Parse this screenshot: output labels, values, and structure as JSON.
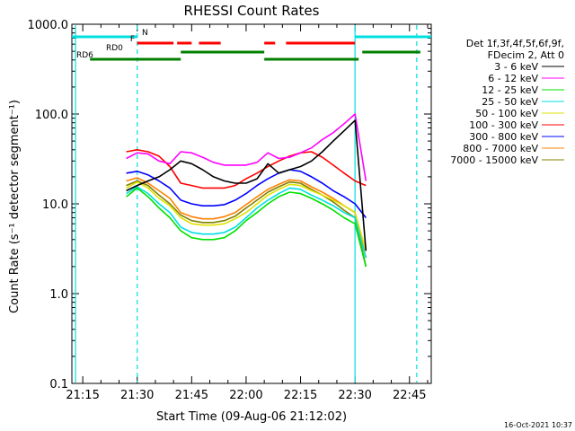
{
  "chart_data": {
    "type": "line",
    "title": "RHESSI Count Rates",
    "xlabel": "Start Time (09-Aug-06 21:12:02)",
    "ylabel": "Count Rate (s⁻¹ detector segment⁻¹)",
    "y_scale": "log",
    "ylim": [
      0.1,
      1000
    ],
    "y_ticks": [
      0.1,
      1.0,
      10.0,
      100.0,
      1000.0
    ],
    "y_tick_labels": [
      "0.1",
      "1.0",
      "10.0",
      "100.0",
      "1000.0"
    ],
    "xlim": [
      "21:12",
      "22:51"
    ],
    "x_ticks": [
      "21:15",
      "21:30",
      "21:45",
      "22:00",
      "22:15",
      "22:30",
      "22:45"
    ],
    "legend_position": "right",
    "legend_header": [
      "Det 1f,3f,4f,5f,6f,9f,",
      "FDecim 2, Att 0"
    ],
    "timestamp": "16-Oct-2021 10:37",
    "time_points": [
      "21:27",
      "21:30",
      "21:33",
      "21:36",
      "21:39",
      "21:42",
      "21:45",
      "21:48",
      "21:51",
      "21:54",
      "21:57",
      "22:00",
      "22:03",
      "22:06",
      "22:09",
      "22:12",
      "22:15",
      "22:18",
      "22:21",
      "22:24",
      "22:27",
      "22:30",
      "22:33"
    ],
    "series": [
      {
        "name": "3 - 6 keV",
        "color": "#000000",
        "values": [
          14,
          16,
          18,
          20,
          24,
          30,
          28,
          24,
          20,
          18,
          17,
          17,
          19,
          28,
          22,
          24,
          26,
          30,
          38,
          50,
          65,
          85,
          3
        ]
      },
      {
        "name": "6 - 12 keV",
        "color": "#ff00ff",
        "values": [
          32,
          37,
          36,
          30,
          28,
          38,
          37,
          33,
          29,
          27,
          27,
          27,
          29,
          37,
          32,
          33,
          37,
          42,
          52,
          62,
          78,
          100,
          18
        ]
      },
      {
        "name": "12 - 25 keV",
        "color": "#00e000",
        "values": [
          12,
          15,
          12,
          9,
          7,
          5,
          4.2,
          4.0,
          4.0,
          4.2,
          5,
          6.5,
          8,
          10,
          12,
          13.5,
          13,
          11.5,
          10,
          8.5,
          7,
          6,
          2
        ]
      },
      {
        "name": "25 - 50 keV",
        "color": "#00e0e0",
        "values": [
          13,
          15.5,
          13,
          10,
          8,
          5.5,
          4.8,
          4.6,
          4.6,
          4.8,
          5.5,
          7,
          9,
          11,
          13,
          15,
          14.5,
          12.5,
          11,
          9.5,
          8,
          7,
          2.5
        ]
      },
      {
        "name": "50 - 100 keV",
        "color": "#e0e000",
        "values": [
          15,
          17.5,
          15,
          11.5,
          9.5,
          7,
          6,
          5.8,
          5.8,
          6,
          6.8,
          8,
          10,
          12.5,
          14.5,
          16.5,
          16,
          14,
          12.5,
          11,
          9.5,
          8,
          3
        ]
      },
      {
        "name": "100 - 300 keV",
        "color": "#ff0000",
        "values": [
          38,
          40,
          38,
          34,
          26,
          17,
          16,
          15,
          15,
          15,
          16,
          19,
          22,
          26,
          30,
          34,
          37,
          38,
          33,
          27,
          22,
          18,
          16
        ]
      },
      {
        "name": "300 - 800 keV",
        "color": "#0000ff",
        "values": [
          22,
          23,
          21,
          18,
          15,
          11,
          10,
          9.5,
          9.5,
          9.8,
          11,
          13,
          16,
          19,
          22,
          24,
          23,
          20,
          17,
          14,
          12,
          10,
          7
        ]
      },
      {
        "name": "800 - 7000 keV",
        "color": "#ff8000",
        "values": [
          18,
          19.5,
          17,
          14,
          11.5,
          8,
          7.2,
          6.8,
          6.8,
          7.2,
          8,
          9.8,
          12,
          14.5,
          16.5,
          18.5,
          18,
          15.5,
          13.5,
          11.5,
          9.5,
          8,
          2.5
        ]
      },
      {
        "name": "7000 - 15000 keV",
        "color": "#808000",
        "values": [
          16,
          18,
          16,
          12.5,
          10,
          7.5,
          6.5,
          6.2,
          6.2,
          6.5,
          7.3,
          9,
          11,
          13.5,
          15.5,
          17.5,
          17,
          14.5,
          12.5,
          10.5,
          8.5,
          7,
          2
        ]
      }
    ],
    "status_bars": [
      {
        "label": "N",
        "color": "#00e0e0",
        "segments": [
          [
            "21:12",
            "21:30"
          ],
          [
            "22:30",
            "22:51"
          ]
        ]
      },
      {
        "label": "F",
        "color": "#ff0000",
        "segments": [
          [
            "21:30",
            "21:40"
          ],
          [
            "21:41",
            "21:45"
          ],
          [
            "21:47",
            "21:53"
          ],
          [
            "22:05",
            "22:08"
          ],
          [
            "22:11",
            "22:30"
          ]
        ]
      },
      {
        "label": "RD0",
        "color": "#008000",
        "segments": [
          [
            "21:42",
            "22:05"
          ],
          [
            "22:32",
            "22:48"
          ]
        ]
      },
      {
        "label": "RD6",
        "color": "#008000",
        "segments": [
          [
            "21:17",
            "21:42"
          ],
          [
            "22:05",
            "22:31"
          ]
        ]
      }
    ],
    "vertical_markers": [
      {
        "time": "21:13",
        "color": "#00e0e0",
        "style": "solid"
      },
      {
        "time": "21:30",
        "color": "#00e0e0",
        "style": "dashed"
      },
      {
        "time": "22:30",
        "color": "#00e0e0",
        "style": "solid"
      },
      {
        "time": "22:47",
        "color": "#00e0e0",
        "style": "dashed"
      }
    ]
  }
}
